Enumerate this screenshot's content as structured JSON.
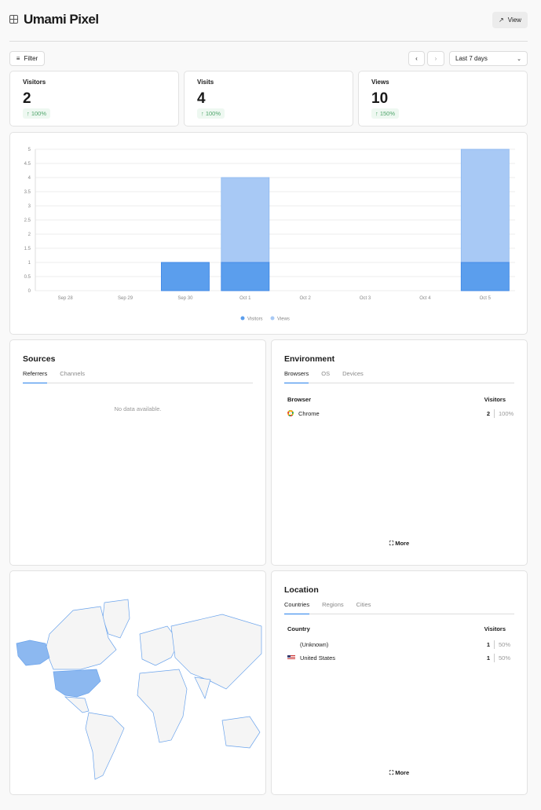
{
  "header": {
    "title": "Umami Pixel",
    "view_label": "View",
    "icon": "grid-icon"
  },
  "toolbar": {
    "filter_label": "Filter",
    "date_range": "Last 7 days"
  },
  "metrics": [
    {
      "label": "Visitors",
      "value": "2",
      "change": "100%"
    },
    {
      "label": "Visits",
      "value": "4",
      "change": "100%"
    },
    {
      "label": "Views",
      "value": "10",
      "change": "150%"
    }
  ],
  "chart_data": {
    "type": "bar",
    "categories": [
      "Sep 28",
      "Sep 29",
      "Sep 30",
      "Oct 1",
      "Oct 2",
      "Oct 3",
      "Oct 4",
      "Oct 5"
    ],
    "series": [
      {
        "name": "Visitors",
        "values": [
          0,
          0,
          1,
          1,
          0,
          0,
          0,
          1
        ],
        "color": "#5b9eed"
      },
      {
        "name": "Views",
        "values": [
          0,
          0,
          1,
          4,
          0,
          0,
          0,
          5
        ],
        "color": "#a8c9f5"
      }
    ],
    "yticks": [
      "0",
      "0.5",
      "1",
      "1.5",
      "2",
      "2.5",
      "3",
      "3.5",
      "4",
      "4.5",
      "5"
    ],
    "ylim": [
      0,
      5
    ],
    "grid": true,
    "legend": "bottom"
  },
  "sources": {
    "title": "Sources",
    "tabs": [
      "Referrers",
      "Channels"
    ],
    "empty": "No data available."
  },
  "environment": {
    "title": "Environment",
    "tabs": [
      "Browsers",
      "OS",
      "Devices"
    ],
    "col1": "Browser",
    "col2": "Visitors",
    "rows": [
      {
        "name": "Chrome",
        "value": "2",
        "pct": "100%"
      }
    ],
    "more": "More"
  },
  "location": {
    "title": "Location",
    "tabs": [
      "Countries",
      "Regions",
      "Cities"
    ],
    "col1": "Country",
    "col2": "Visitors",
    "rows": [
      {
        "name": "(Unknown)",
        "value": "1",
        "pct": "50%"
      },
      {
        "name": "United States",
        "value": "1",
        "pct": "50%"
      }
    ],
    "more": "More"
  },
  "colors": {
    "accent": "#2680eb",
    "visitors": "#5b9eed",
    "views": "#a8c9f5",
    "map_highlight": "#8cb8f0"
  }
}
